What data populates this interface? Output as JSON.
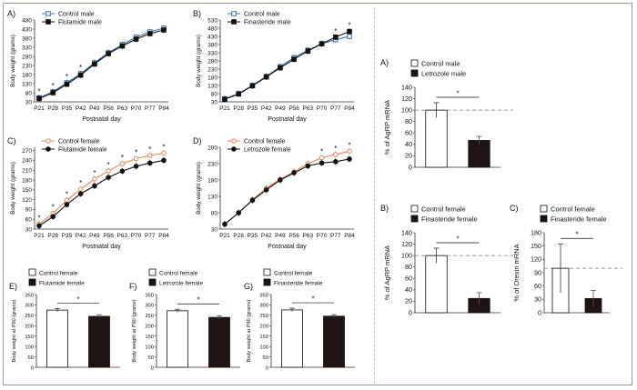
{
  "colors": {
    "control_male": "#3d6fa6",
    "treated_black": "#111111",
    "control_female": "#e08a5a",
    "bar_control": "#ffffff",
    "bar_treated": "#1e1412",
    "reference_line": "#9a9a9a",
    "frame": "#8e9bb3"
  },
  "chart_data": [
    {
      "id": "A_left",
      "type": "line",
      "panel_label": "A)",
      "width": 180,
      "height": 128,
      "ylabel": "Body weight (grams)",
      "xlabel": "Postnatal day",
      "ylim": [
        30,
        480
      ],
      "yticks": [
        30,
        80,
        130,
        180,
        230,
        280,
        330,
        380,
        430,
        480
      ],
      "categories": [
        "P21",
        "P28",
        "P35",
        "P42",
        "P49",
        "P56",
        "P63",
        "P70",
        "P77",
        "P84"
      ],
      "series": [
        {
          "name": "Control male",
          "color": "#3d6fa6",
          "marker": "open-square",
          "values": [
            52,
            85,
            135,
            185,
            245,
            300,
            345,
            385,
            415,
            435
          ]
        },
        {
          "name": "Flutamide male",
          "color": "#111111",
          "marker": "filled-square",
          "values": [
            48,
            80,
            127,
            177,
            238,
            295,
            337,
            375,
            405,
            425
          ]
        }
      ],
      "significance": [
        "*",
        "*",
        "*",
        "*",
        "",
        "",
        "",
        "",
        "",
        ""
      ]
    },
    {
      "id": "B_left",
      "type": "line",
      "panel_label": "B)",
      "width": 180,
      "height": 128,
      "ylabel": "Body weight (grams)",
      "xlabel": "Postnatal day",
      "ylim": [
        30,
        530
      ],
      "yticks": [
        30,
        80,
        130,
        180,
        230,
        280,
        330,
        380,
        430,
        480,
        530
      ],
      "categories": [
        "P21",
        "P28",
        "P35",
        "P42",
        "P49",
        "P56",
        "P63",
        "P70",
        "P77",
        "P84"
      ],
      "series": [
        {
          "name": "Control male",
          "color": "#3d6fa6",
          "marker": "open-square",
          "values": [
            48,
            80,
            130,
            185,
            245,
            300,
            345,
            385,
            410,
            430
          ]
        },
        {
          "name": "Finasteride male",
          "color": "#111111",
          "marker": "filled-square",
          "values": [
            45,
            78,
            128,
            182,
            238,
            290,
            340,
            385,
            425,
            460
          ]
        }
      ],
      "significance": [
        "",
        "",
        "",
        "",
        "",
        "",
        "",
        "",
        "*",
        "*"
      ]
    },
    {
      "id": "C_left",
      "type": "line",
      "panel_label": "C)",
      "width": 180,
      "height": 128,
      "ylabel": "Body weight (grams)",
      "xlabel": "Postnatal day",
      "ylim": [
        30,
        280
      ],
      "yticks": [
        30,
        60,
        90,
        120,
        150,
        180,
        210,
        240,
        270
      ],
      "categories": [
        "P21",
        "P28",
        "P35",
        "P42",
        "P49",
        "P56",
        "P63",
        "P70",
        "P77",
        "P84"
      ],
      "series": [
        {
          "name": "Control female",
          "color": "#e08a5a",
          "marker": "open-circle",
          "values": [
            45,
            78,
            118,
            152,
            183,
            208,
            230,
            245,
            255,
            262
          ]
        },
        {
          "name": "Flutamide female",
          "color": "#111111",
          "marker": "filled-circle",
          "values": [
            40,
            68,
            105,
            138,
            162,
            188,
            207,
            222,
            232,
            240
          ]
        }
      ],
      "significance": [
        "*",
        "*",
        "*",
        "*",
        "*",
        "*",
        "*",
        "*",
        "*",
        "*"
      ]
    },
    {
      "id": "D_left",
      "type": "line",
      "panel_label": "D)",
      "width": 180,
      "height": 128,
      "ylabel": "Body weight (grams)",
      "xlabel": "Postnatal day",
      "ylim": [
        30,
        280
      ],
      "yticks": [
        30,
        80,
        130,
        180,
        230,
        280
      ],
      "categories": [
        "P21",
        "P28",
        "P35",
        "P42",
        "P49",
        "P56",
        "P63",
        "P70",
        "P77",
        "P84"
      ],
      "series": [
        {
          "name": "Control female",
          "color": "#e08a5a",
          "marker": "open-circle",
          "values": [
            45,
            80,
            120,
            155,
            182,
            205,
            230,
            248,
            258,
            268
          ]
        },
        {
          "name": "Letrozole female",
          "color": "#111111",
          "marker": "filled-circle",
          "values": [
            45,
            80,
            118,
            150,
            180,
            202,
            223,
            232,
            236,
            244
          ]
        }
      ],
      "significance": [
        "",
        "",
        "",
        "",
        "",
        "",
        "",
        "*",
        "*",
        "*"
      ]
    },
    {
      "id": "E_left",
      "type": "bar",
      "panel_label": "E)",
      "width": 128,
      "height": 118,
      "ylabel": "Body weight at P90 (grams)",
      "ylim": [
        0,
        350
      ],
      "yticks": [
        0,
        50,
        100,
        150,
        200,
        250,
        300,
        350
      ],
      "legend": [
        "Control female",
        "Flutamide female"
      ],
      "values": [
        275,
        245
      ],
      "errors": [
        8,
        8
      ],
      "significance": "*"
    },
    {
      "id": "F_left",
      "type": "bar",
      "panel_label": "F)",
      "width": 128,
      "height": 118,
      "ylabel": "Body weight at P90 (grams)",
      "ylim": [
        0,
        350
      ],
      "yticks": [
        0,
        50,
        100,
        150,
        200,
        250,
        300,
        350
      ],
      "legend": [
        "Control female",
        "Letrozole female"
      ],
      "values": [
        272,
        240
      ],
      "errors": [
        7,
        7
      ],
      "significance": "*"
    },
    {
      "id": "G_left",
      "type": "bar",
      "panel_label": "G)",
      "width": 128,
      "height": 118,
      "ylabel": "Body weight at P90 (grams)",
      "ylim": [
        0,
        350
      ],
      "yticks": [
        0,
        50,
        100,
        150,
        200,
        250,
        300,
        350
      ],
      "legend": [
        "Control female",
        "Finasteride female"
      ],
      "values": [
        276,
        246
      ],
      "errors": [
        8,
        7
      ],
      "significance": "*"
    },
    {
      "id": "A_right",
      "type": "bar",
      "panel_label": "A)",
      "width": 148,
      "height": 128,
      "ylabel": "% of AgRP mRNA",
      "ylim": [
        0,
        140
      ],
      "yticks": [
        0,
        20,
        40,
        60,
        80,
        100,
        120,
        140
      ],
      "reference_line": 100,
      "legend": [
        "Control male",
        "Letrozole male"
      ],
      "values": [
        100,
        47
      ],
      "errors": [
        13,
        7
      ],
      "significance": "*"
    },
    {
      "id": "B_right",
      "type": "bar",
      "panel_label": "B)",
      "width": 148,
      "height": 128,
      "ylabel": "% of AgRP mRNA",
      "ylim": [
        0,
        140
      ],
      "yticks": [
        0,
        20,
        40,
        60,
        80,
        100,
        120,
        140
      ],
      "reference_line": 100,
      "legend": [
        "Control female",
        "Finasteride female"
      ],
      "values": [
        100,
        25
      ],
      "errors": [
        13,
        10
      ],
      "significance": "*"
    },
    {
      "id": "C_right",
      "type": "bar",
      "panel_label": "C)",
      "width": 126,
      "height": 128,
      "ylabel": "% of Orexin mRNA",
      "ylim": [
        0,
        180
      ],
      "yticks": [
        0,
        30,
        60,
        90,
        120,
        150,
        180
      ],
      "reference_line": 100,
      "legend": [
        "Control female",
        "Finasteride female"
      ],
      "values": [
        100,
        32
      ],
      "errors": [
        55,
        18
      ],
      "significance": "*"
    }
  ]
}
